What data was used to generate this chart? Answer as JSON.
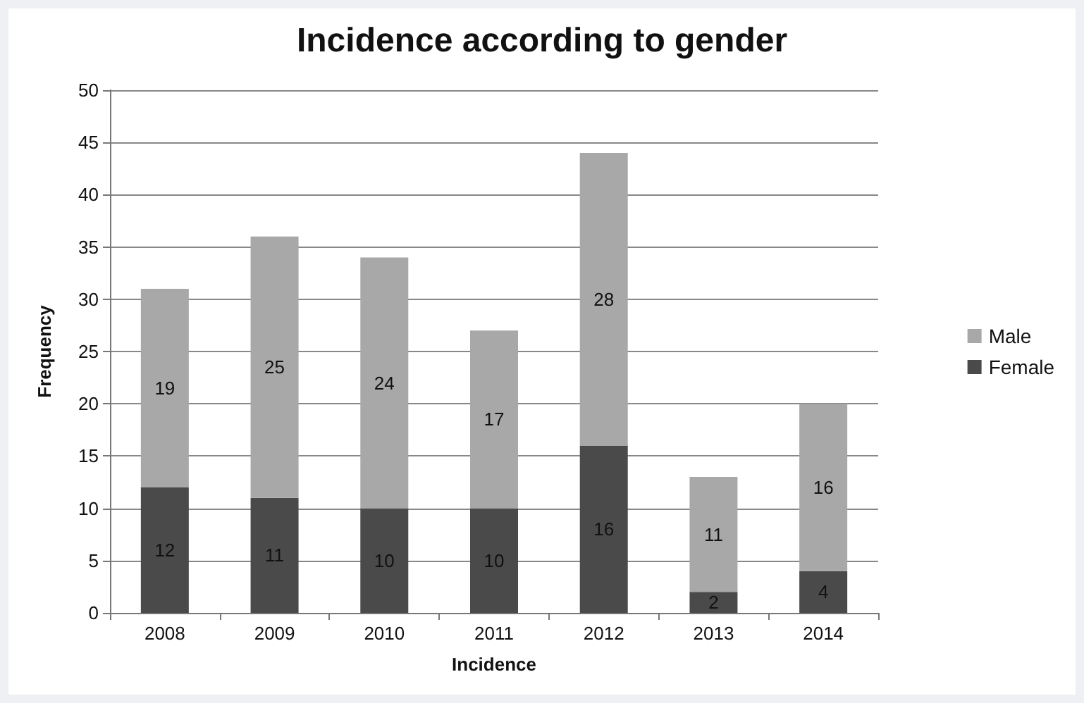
{
  "chart_data": {
    "type": "bar",
    "title": "Incidence according to gender",
    "xlabel": "Incidence",
    "ylabel": "Frequency",
    "categories": [
      "2008",
      "2009",
      "2010",
      "2011",
      "2012",
      "2013",
      "2014"
    ],
    "series": [
      {
        "name": "Female",
        "color": "#4a4a4a",
        "values": [
          12,
          11,
          10,
          10,
          16,
          2,
          4
        ]
      },
      {
        "name": "Male",
        "color": "#a8a8a8",
        "values": [
          19,
          25,
          24,
          17,
          28,
          11,
          16
        ]
      }
    ],
    "stacked": true,
    "data_labels": true,
    "ylim": [
      0,
      50
    ],
    "yticks": [
      0,
      5,
      10,
      15,
      20,
      25,
      30,
      35,
      40,
      45,
      50
    ],
    "grid": "y",
    "legend": "right"
  }
}
